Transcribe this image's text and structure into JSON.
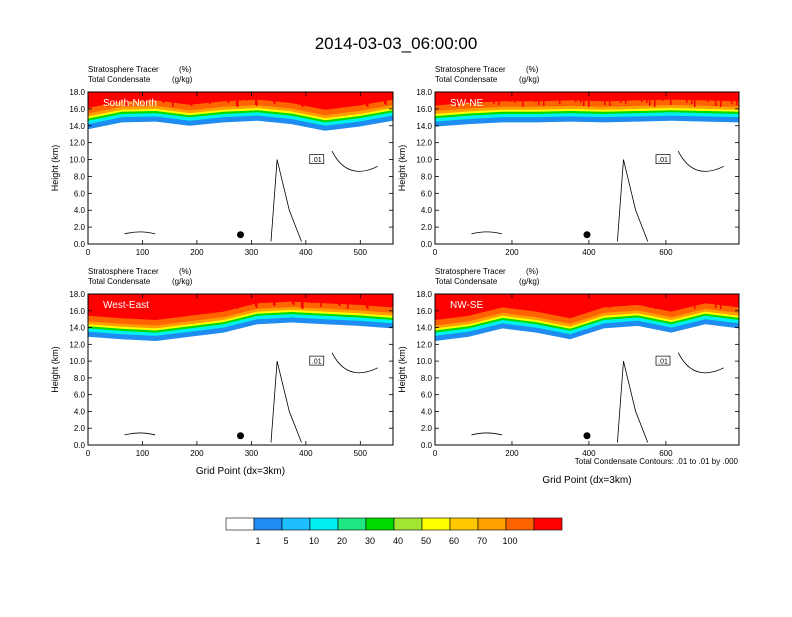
{
  "title": "2014-03-03_06:00:00",
  "footnote": "Total Condensate Contours: .01 to .01 by .000",
  "contour_labels": [
    ".01"
  ],
  "colorbar": {
    "colors": [
      "#ffffff",
      "#1e8cf0",
      "#1ebeff",
      "#00f0f0",
      "#1ee682",
      "#00dc00",
      "#a0e632",
      "#ffff00",
      "#ffc800",
      "#ffa000",
      "#ff6400",
      "#ff0000"
    ],
    "labels": [
      "1",
      "5",
      "10",
      "20",
      "30",
      "40",
      "50",
      "60",
      "70",
      "100"
    ]
  },
  "chart_data": [
    {
      "type": "heatmap",
      "panel": "South-North",
      "subtitle_left": "Stratosphere Tracer",
      "subtitle_left_unit": "(%)",
      "subtitle_left2": "Total Condensate",
      "subtitle_left2_unit": "(g/kg)",
      "ylabel": "Height (km)",
      "xlabel": "",
      "xlim": [
        0,
        560
      ],
      "ylim": [
        0,
        18
      ],
      "xticks": [
        0,
        100,
        200,
        300,
        400,
        500
      ],
      "yticks": [
        "0.0",
        "2.0",
        "4.0",
        "6.0",
        "8.0",
        "10.0",
        "12.0",
        "14.0",
        "16.0",
        "18.0"
      ],
      "tracer_base_km": [
        15.2,
        16.0,
        16.1,
        15.6,
        16.0,
        16.2,
        15.8,
        15.0,
        15.5,
        16.2
      ]
    },
    {
      "type": "heatmap",
      "panel": "SW-NE",
      "subtitle_left": "Stratosphere Tracer",
      "subtitle_left_unit": "(%)",
      "subtitle_left2": "Total Condensate",
      "subtitle_left2_unit": "(g/kg)",
      "ylabel": "Height (km)",
      "xlabel": "",
      "xlim": [
        0,
        790
      ],
      "ylim": [
        0,
        18
      ],
      "xticks": [
        0,
        200,
        400,
        600
      ],
      "yticks": [
        "0.0",
        "2.0",
        "4.0",
        "6.0",
        "8.0",
        "10.0",
        "12.0",
        "14.0",
        "16.0",
        "18.0"
      ],
      "tracer_base_km": [
        15.5,
        15.8,
        16.0,
        16.0,
        16.1,
        16.0,
        16.1,
        16.2,
        16.1,
        16.0
      ]
    },
    {
      "type": "heatmap",
      "panel": "West-East",
      "subtitle_left": "Stratosphere Tracer",
      "subtitle_left_unit": "(%)",
      "subtitle_left2": "Total Condensate",
      "subtitle_left2_unit": "(g/kg)",
      "ylabel": "Height (km)",
      "xlabel": "Grid Point (dx=3km)",
      "xlim": [
        0,
        560
      ],
      "ylim": [
        0,
        18
      ],
      "xticks": [
        0,
        100,
        200,
        300,
        400,
        500
      ],
      "yticks": [
        "0.0",
        "2.0",
        "4.0",
        "6.0",
        "8.0",
        "10.0",
        "12.0",
        "14.0",
        "16.0",
        "18.0"
      ],
      "tracer_base_km": [
        14.5,
        14.2,
        14.0,
        14.5,
        15.0,
        16.0,
        16.2,
        16.0,
        15.8,
        15.5
      ]
    },
    {
      "type": "heatmap",
      "panel": "NW-SE",
      "subtitle_left": "Stratosphere Tracer",
      "subtitle_left_unit": "(%)",
      "subtitle_left2": "Total Condensate",
      "subtitle_left2_unit": "(g/kg)",
      "ylabel": "Height (km)",
      "xlabel": "Grid Point (dx=3km)",
      "xlim": [
        0,
        790
      ],
      "ylim": [
        0,
        18
      ],
      "xticks": [
        0,
        200,
        400,
        600
      ],
      "yticks": [
        "0.0",
        "2.0",
        "4.0",
        "6.0",
        "8.0",
        "10.0",
        "12.0",
        "14.0",
        "16.0",
        "18.0"
      ],
      "tracer_base_km": [
        14.0,
        14.5,
        15.5,
        15.0,
        14.2,
        15.5,
        15.8,
        15.0,
        16.0,
        15.5
      ]
    }
  ]
}
